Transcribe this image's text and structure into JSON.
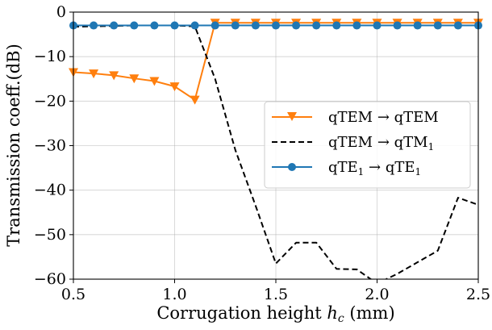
{
  "chart_data": {
    "type": "line",
    "xlabel": "Corrugation height hc (mm)",
    "ylabel": "Transmission coeff.(dB)",
    "xlim": [
      0.5,
      2.5
    ],
    "ylim": [
      -60,
      0
    ],
    "xticks": [
      "0.5",
      "1.0",
      "1.5",
      "2.0",
      "2.5"
    ],
    "yticks": [
      "0",
      "−10",
      "−20",
      "−30",
      "−40",
      "−50",
      "−60"
    ],
    "grid": true,
    "legend_position": "center-right",
    "series": [
      {
        "name": "qTEM → qTEM",
        "color": "#ff7f0e",
        "style": "solid",
        "marker": "triangle-down",
        "x": [
          0.5,
          0.6,
          0.7,
          0.8,
          0.9,
          1.0,
          1.1,
          1.2,
          1.3,
          1.4,
          1.5,
          1.6,
          1.7,
          1.8,
          1.9,
          2.0,
          2.1,
          2.2,
          2.3,
          2.4,
          2.5
        ],
        "y": [
          -13.5,
          -13.8,
          -14.2,
          -14.9,
          -15.5,
          -16.7,
          -19.7,
          -2.4,
          -2.4,
          -2.4,
          -2.4,
          -2.4,
          -2.4,
          -2.4,
          -2.4,
          -2.4,
          -2.4,
          -2.4,
          -2.4,
          -2.4,
          -2.4
        ]
      },
      {
        "name": "qTEM → qTM1",
        "color": "#000000",
        "style": "dashed",
        "marker": "none",
        "x": [
          0.5,
          0.6,
          0.7,
          0.8,
          0.9,
          1.0,
          1.1,
          1.2,
          1.3,
          1.4,
          1.5,
          1.6,
          1.7,
          1.8,
          1.9,
          2.0,
          2.1,
          2.2,
          2.3,
          2.4,
          2.5
        ],
        "y": [
          -3.3,
          -3.2,
          -3.1,
          -3.0,
          -3.0,
          -3.0,
          -3.2,
          -15.0,
          -31.0,
          -43.5,
          -56.5,
          -51.8,
          -51.8,
          -57.7,
          -57.8,
          -61.0,
          -58.8,
          -56.2,
          -53.6,
          -41.7,
          -43.3
        ]
      },
      {
        "name": "qTE1 → qTE1",
        "color": "#1f77b4",
        "style": "solid",
        "marker": "circle",
        "x": [
          0.5,
          0.6,
          0.7,
          0.8,
          0.9,
          1.0,
          1.1,
          1.2,
          1.3,
          1.4,
          1.5,
          1.6,
          1.7,
          1.8,
          1.9,
          2.0,
          2.1,
          2.2,
          2.3,
          2.4,
          2.5
        ],
        "y": [
          -3.0,
          -3.0,
          -3.0,
          -3.0,
          -3.0,
          -3.0,
          -3.0,
          -3.0,
          -3.0,
          -3.0,
          -3.0,
          -3.0,
          -3.0,
          -3.0,
          -3.0,
          -3.0,
          -3.0,
          -3.0,
          -3.0,
          -3.0,
          -3.0
        ]
      }
    ]
  }
}
